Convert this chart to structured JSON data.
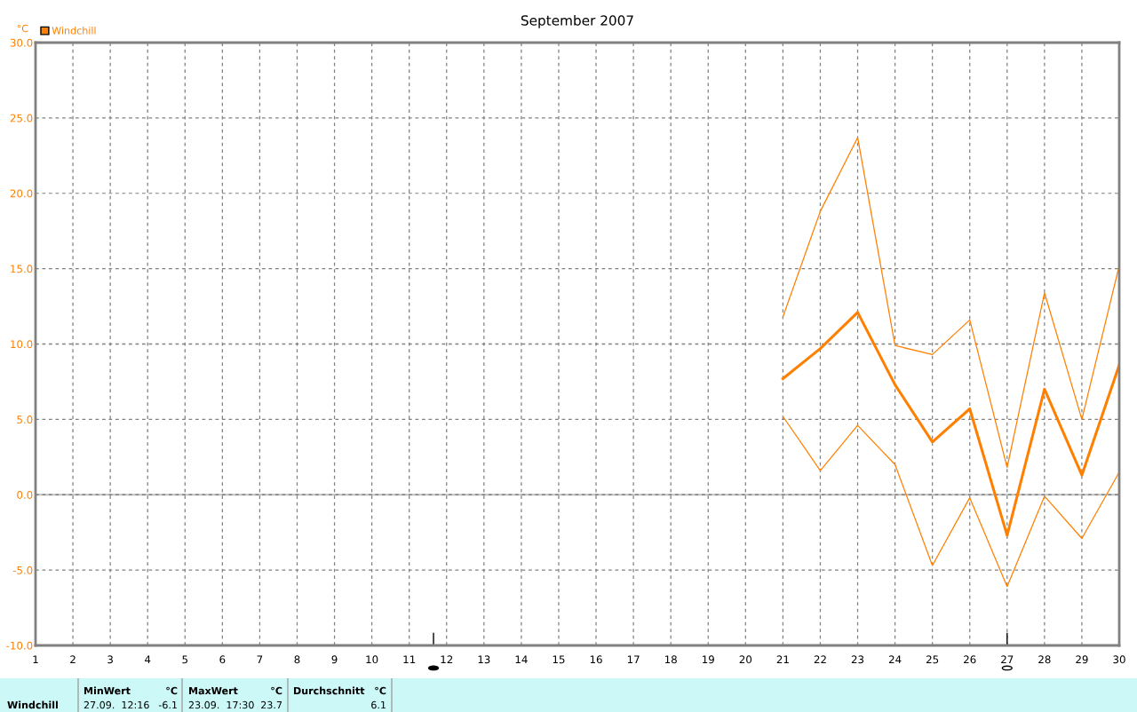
{
  "chart_data": {
    "type": "line",
    "title": "September 2007",
    "ylabel": "°C",
    "x": [
      21,
      22,
      23,
      24,
      25,
      26,
      27,
      28,
      29,
      30
    ],
    "series": [
      {
        "color": "#ff8000",
        "values": [
          11.8,
          18.8,
          23.7,
          9.9,
          9.3,
          11.6,
          1.8,
          13.4,
          5.0,
          15.2
        ]
      },
      {
        "name": "Windchill",
        "color": "#ff8000",
        "values": [
          7.7,
          9.7,
          12.1,
          7.3,
          3.5,
          5.7,
          -2.7,
          7.0,
          1.3,
          8.6
        ]
      },
      {
        "color": "#ff8000",
        "values": [
          5.2,
          1.6,
          4.6,
          2.0,
          -4.7,
          -0.2,
          -6.1,
          -0.1,
          -2.9,
          1.5
        ]
      }
    ],
    "xlim": [
      1,
      30
    ],
    "xticks": [
      1,
      2,
      3,
      4,
      5,
      6,
      7,
      8,
      9,
      10,
      11,
      12,
      13,
      14,
      15,
      16,
      17,
      18,
      19,
      20,
      21,
      22,
      23,
      24,
      25,
      26,
      27,
      28,
      29,
      30
    ],
    "ylim": [
      -10,
      30
    ],
    "yticks": [
      {
        "value": -10,
        "label": "-10.0"
      },
      {
        "value": -5,
        "label": "-5.0"
      },
      {
        "value": 0,
        "label": "0.0"
      },
      {
        "value": 5,
        "label": "5.0"
      },
      {
        "value": 10,
        "label": "10.0"
      },
      {
        "value": 15,
        "label": "15.0"
      },
      {
        "value": 20,
        "label": "20.0"
      },
      {
        "value": 25,
        "label": "25.0"
      },
      {
        "value": 30,
        "label": "30.0"
      }
    ],
    "ref_lines": [
      {
        "axis": "y",
        "value": 0,
        "color": "#c0c0c0"
      }
    ],
    "grid": true,
    "legend": "top left",
    "marker": "none",
    "line_style": "solid",
    "annotations": [
      "Windchill",
      "MinWert",
      "°C",
      "27.09.  12:16",
      "-6.1",
      "MaxWert",
      "°C",
      "23.09.  17:30",
      "23.7",
      "Durchschnitt",
      "°C",
      "6.1"
    ]
  }
}
